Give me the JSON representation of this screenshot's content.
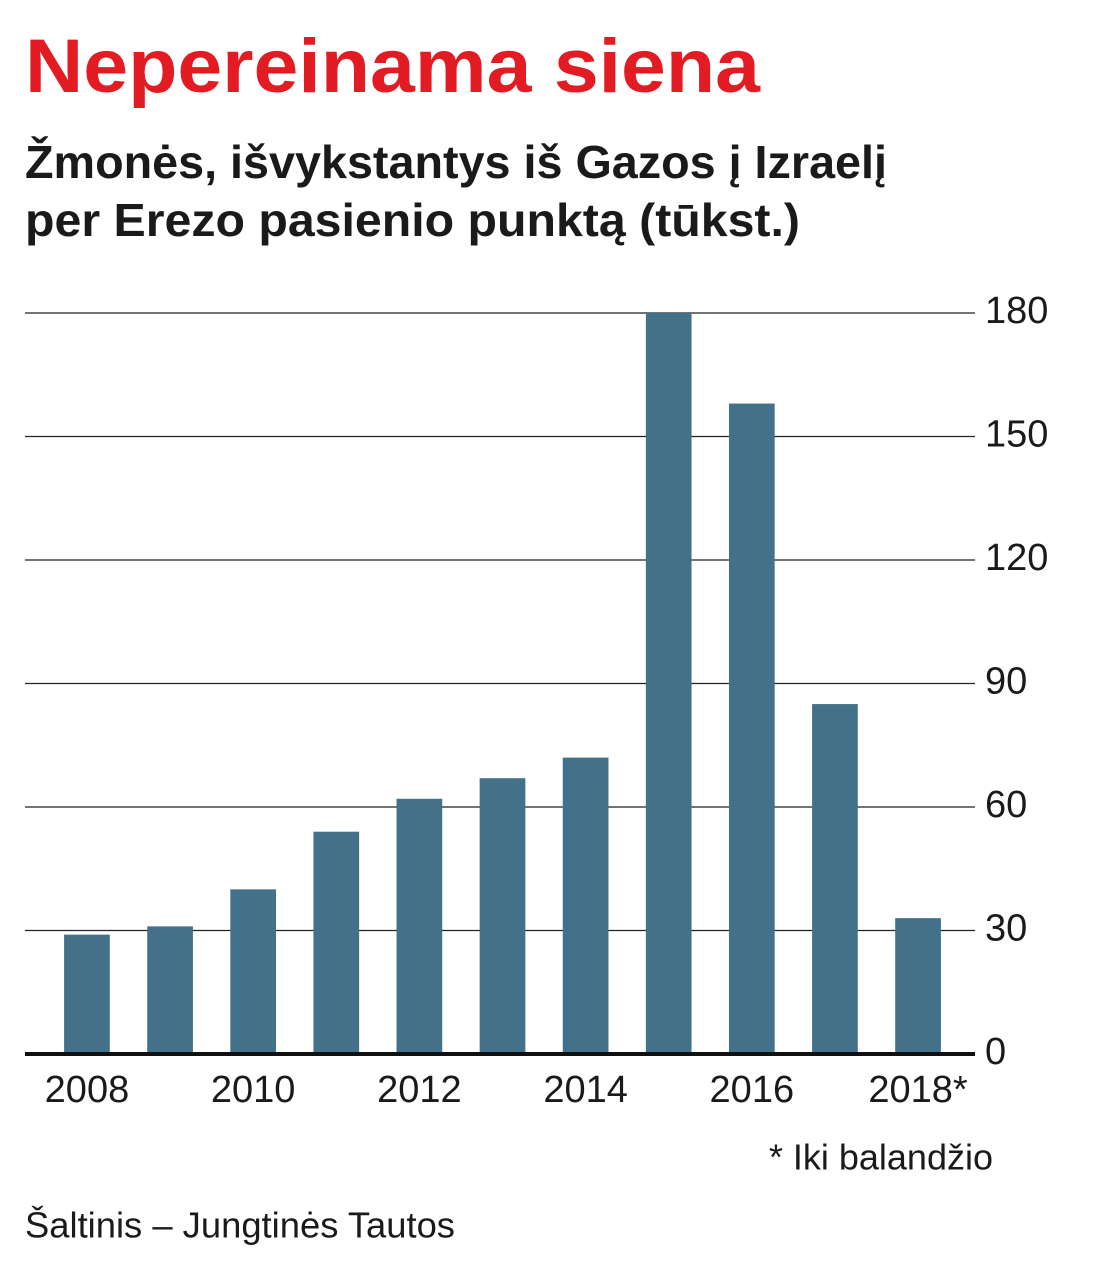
{
  "chart_data": {
    "type": "bar",
    "title": "Nepereinama siena",
    "subtitle": [
      "Žmonės, išvykstantys iš Gazos į Izraelį",
      "per Erezo pasienio punktą (tūkst.)"
    ],
    "categories": [
      "2008",
      null,
      "2010",
      null,
      "2012",
      null,
      "2014",
      null,
      "2016",
      null,
      "2018*"
    ],
    "values": [
      29,
      31,
      40,
      54,
      62,
      67,
      72,
      180,
      158,
      85,
      33
    ],
    "color": "#44718a",
    "ylim": [
      0,
      180
    ],
    "yticks": [
      0,
      30,
      60,
      90,
      120,
      150,
      180
    ],
    "grid": true,
    "note": "* Iki balandžio",
    "source": "Šaltinis – Jungtinės Tautos"
  }
}
